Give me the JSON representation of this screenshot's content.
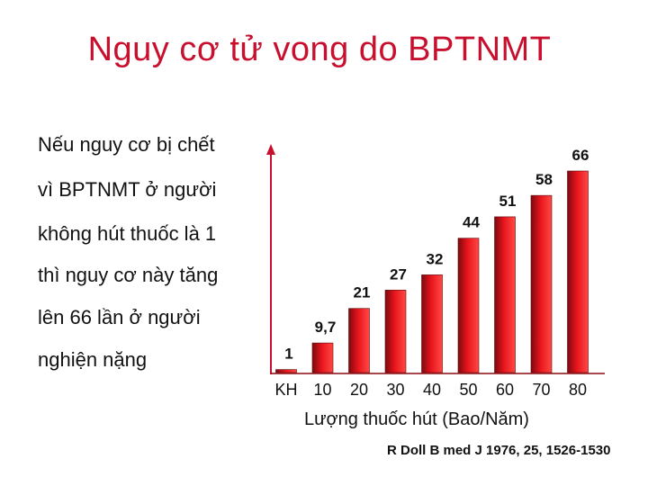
{
  "slide": {
    "title": "Nguy cơ tử vong do BPTNMT",
    "description_lines": [
      "Nếu nguy cơ bị chết",
      "vì BPTNMT ở người",
      "không hút thuốc là 1",
      "thì nguy cơ này tăng",
      "lên 66 lần ở người",
      "nghiện nặng"
    ],
    "source": "R Doll B med J 1976, 25, 1526-1530"
  },
  "chart_data": {
    "type": "bar",
    "title": "",
    "xlabel": "Lượng thuốc hút (Bao/Năm)",
    "ylabel": "",
    "categories": [
      "KH",
      "10",
      "20",
      "30",
      "40",
      "50",
      "60",
      "70",
      "80"
    ],
    "values": [
      1,
      9.7,
      21,
      27,
      32,
      44,
      51,
      58,
      66
    ],
    "value_labels": [
      "1",
      "9,7",
      "21",
      "27",
      "32",
      "44",
      "51",
      "58",
      "66"
    ],
    "ylim": [
      0,
      70
    ],
    "grid": false,
    "legend": "none",
    "colors": {
      "bar": "#e8141c",
      "bar_dark": "#7a0a0f",
      "bar_light": "#ff4a44",
      "axis": "#c8102e",
      "title": "#c8102e"
    }
  }
}
